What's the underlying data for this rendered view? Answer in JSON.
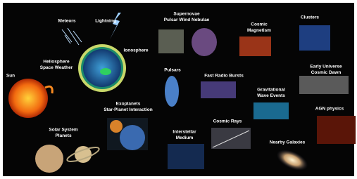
{
  "labels": [
    {
      "lines": [
        "Meteors"
      ]
    },
    {
      "lines": [
        "Lightning"
      ]
    },
    {
      "lines": [
        "Supernovae",
        "Pulsar Wind Nebulae"
      ]
    },
    {
      "lines": [
        "Cosmic",
        "Magnetism"
      ]
    },
    {
      "lines": [
        "Clusters"
      ]
    },
    {
      "lines": [
        "Ionosphere"
      ]
    },
    {
      "lines": [
        "Heliosphere",
        "Space Weather"
      ]
    },
    {
      "lines": [
        "Sun"
      ]
    },
    {
      "lines": [
        "Pulsars"
      ]
    },
    {
      "lines": [
        "Fast Radio Bursts"
      ]
    },
    {
      "lines": [
        "Early Universe",
        "Cosmic Dawn"
      ]
    },
    {
      "lines": [
        "Gravitational",
        "Wave Events"
      ]
    },
    {
      "lines": [
        "Exoplanets",
        "Star-Planet Interaction"
      ]
    },
    {
      "lines": [
        "AGN physics"
      ]
    },
    {
      "lines": [
        "Cosmic Rays"
      ]
    },
    {
      "lines": [
        "Interstellar",
        "Medium"
      ]
    },
    {
      "lines": [
        "Solar System",
        "Planets"
      ]
    },
    {
      "lines": [
        "Nearby Galaxies"
      ]
    }
  ]
}
